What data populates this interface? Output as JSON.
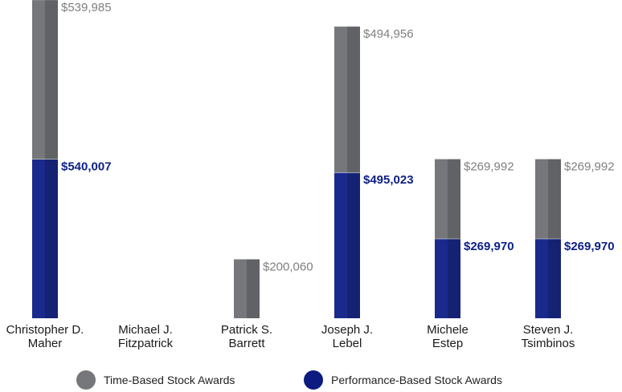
{
  "chart_data": {
    "type": "bar",
    "stacked": true,
    "categories": [
      [
        "Christopher D.",
        "Maher"
      ],
      [
        "Michael J.",
        "Fitzpatrick"
      ],
      [
        "Patrick S.",
        "Barrett"
      ],
      [
        "Joseph J.",
        "Lebel"
      ],
      [
        "Michele",
        "Estep"
      ],
      [
        "Steven J.",
        "Tsimbinos"
      ]
    ],
    "series": [
      {
        "name": "Performance-Based Stock Awards",
        "color": "#1a2a8c",
        "values": [
          540007,
          0,
          0,
          495023,
          269970,
          269970
        ],
        "labels": [
          "$540,007",
          "",
          "",
          "$495,023",
          "$269,970",
          "$269,970"
        ],
        "label_color": "#0d1f85"
      },
      {
        "name": "Time-Based Stock Awards",
        "color": "#76777b",
        "values": [
          539985,
          0,
          200060,
          494956,
          269992,
          269992
        ],
        "labels": [
          "$539,985",
          "",
          "$200,060",
          "$494,956",
          "$269,992",
          "$269,992"
        ],
        "label_color": "#7f7f7f"
      }
    ],
    "xlabel": "",
    "ylabel": "",
    "legend_position": "bottom",
    "grid": false
  },
  "legend": {
    "time_based": "Time-Based Stock Awards",
    "performance_based": "Performance-Based Stock Awards",
    "time_color": "#76777b",
    "performance_color": "#0d1a80"
  }
}
